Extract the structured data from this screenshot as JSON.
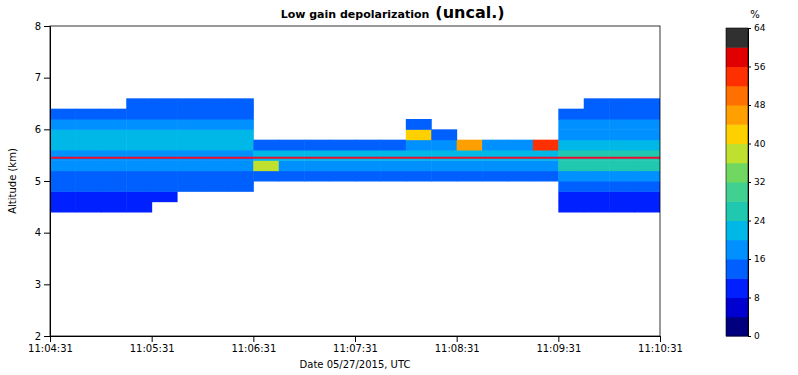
{
  "chart_data": {
    "type": "heatmap",
    "title": "Low gain depolarization",
    "annotation": "(uncal.)",
    "x_label": "Date 05/27/2015, UTC",
    "y_label": "Altitude (km)",
    "xlim": [
      39871,
      40231
    ],
    "xticks": [
      {
        "value": 39871,
        "label": "11:04:31"
      },
      {
        "value": 39931,
        "label": "11:05:31"
      },
      {
        "value": 39991,
        "label": "11:06:31"
      },
      {
        "value": 40051,
        "label": "11:07:31"
      },
      {
        "value": 40111,
        "label": "11:08:31"
      },
      {
        "value": 40171,
        "label": "11:09:31"
      },
      {
        "value": 40231,
        "label": "11:10:31"
      }
    ],
    "ylim": [
      2,
      8
    ],
    "yticks": [
      2,
      3,
      4,
      5,
      6,
      7,
      8
    ],
    "x_bins": [
      39871,
      39886,
      39901,
      39916,
      39931,
      39946,
      39961,
      39976,
      39991,
      40006,
      40021,
      40036,
      40051,
      40066,
      40081,
      40096,
      40111,
      40126,
      40141,
      40156,
      40171,
      40186,
      40201,
      40216,
      40231
    ],
    "y_bins": [
      4.4,
      4.6,
      4.8,
      5,
      5.2,
      5.4,
      5.6,
      5.8,
      6,
      6.2,
      6.4,
      6.6
    ],
    "values": [
      [
        8,
        8,
        8,
        8,
        null,
        null,
        null,
        null,
        null,
        null,
        null,
        null,
        null,
        null,
        null,
        null,
        null,
        null,
        null,
        null,
        8,
        8,
        8,
        8
      ],
      [
        10,
        10,
        10,
        10,
        10,
        null,
        null,
        null,
        null,
        null,
        null,
        null,
        null,
        null,
        null,
        null,
        null,
        null,
        null,
        null,
        10,
        10,
        10,
        10
      ],
      [
        12,
        12,
        12,
        12,
        12,
        12,
        12,
        12,
        null,
        null,
        null,
        null,
        null,
        null,
        null,
        null,
        null,
        null,
        null,
        null,
        14,
        14,
        14,
        14
      ],
      [
        14,
        14,
        14,
        14,
        14,
        14,
        14,
        14,
        12,
        12,
        12,
        12,
        12,
        12,
        12,
        12,
        12,
        12,
        12,
        12,
        18,
        18,
        18,
        18
      ],
      [
        16,
        16,
        16,
        16,
        16,
        16,
        16,
        16,
        36,
        18,
        18,
        18,
        18,
        18,
        18,
        18,
        18,
        18,
        18,
        18,
        24,
        24,
        24,
        24
      ],
      [
        18,
        18,
        18,
        18,
        18,
        18,
        18,
        18,
        20,
        20,
        20,
        20,
        20,
        20,
        20,
        20,
        20,
        20,
        20,
        20,
        24,
        24,
        24,
        24
      ],
      [
        20,
        20,
        20,
        20,
        20,
        20,
        20,
        20,
        14,
        14,
        14,
        14,
        14,
        14,
        16,
        18,
        44,
        16,
        16,
        52,
        20,
        20,
        20,
        20
      ],
      [
        20,
        20,
        20,
        20,
        20,
        20,
        20,
        20,
        null,
        null,
        null,
        null,
        null,
        null,
        40,
        14,
        null,
        null,
        null,
        null,
        16,
        16,
        16,
        16
      ],
      [
        18,
        18,
        18,
        18,
        18,
        18,
        18,
        18,
        null,
        null,
        null,
        null,
        null,
        null,
        14,
        null,
        null,
        null,
        null,
        null,
        16,
        16,
        16,
        16
      ],
      [
        14,
        14,
        14,
        14,
        14,
        14,
        14,
        14,
        null,
        null,
        null,
        null,
        null,
        null,
        null,
        null,
        null,
        null,
        null,
        null,
        14,
        14,
        14,
        14
      ],
      [
        null,
        null,
        null,
        12,
        12,
        12,
        12,
        12,
        null,
        null,
        null,
        null,
        null,
        null,
        null,
        null,
        null,
        null,
        null,
        null,
        null,
        12,
        12,
        12
      ]
    ],
    "hline": {
      "value": 5.45,
      "color": "#e8102e"
    },
    "colorbar": {
      "label": "%",
      "range": [
        0,
        64
      ],
      "ticks": [
        0,
        8,
        16,
        24,
        32,
        40,
        48,
        56,
        64
      ],
      "colors": [
        "#00007f",
        "#0000d0",
        "#0020ff",
        "#0060ff",
        "#0090ff",
        "#00b8e8",
        "#20c8b0",
        "#40d090",
        "#70d860",
        "#c0e030",
        "#ffd000",
        "#ffa000",
        "#ff7000",
        "#ff3000",
        "#e00000",
        "#303030"
      ]
    }
  }
}
